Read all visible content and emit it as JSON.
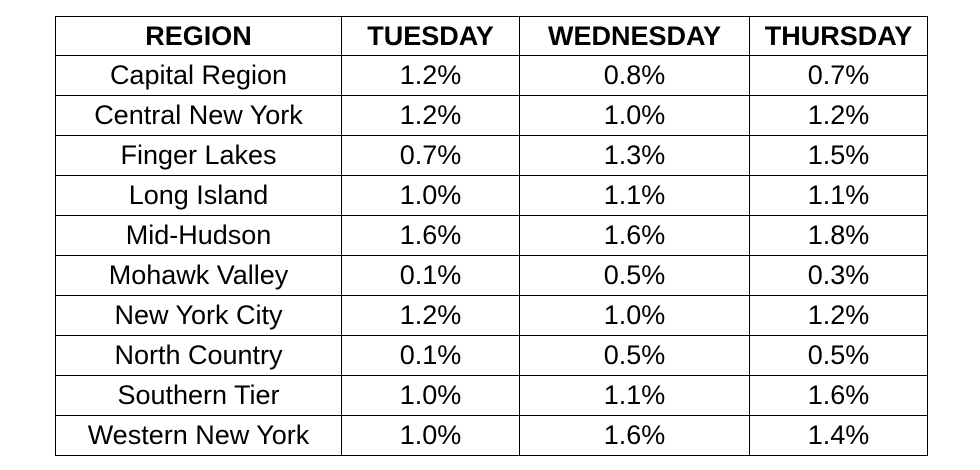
{
  "table": {
    "headers": [
      "REGION",
      "TUESDAY",
      "WEDNESDAY",
      "THURSDAY"
    ],
    "rows": [
      [
        "Capital Region",
        "1.2%",
        "0.8%",
        "0.7%"
      ],
      [
        "Central New York",
        "1.2%",
        "1.0%",
        "1.2%"
      ],
      [
        "Finger Lakes",
        "0.7%",
        "1.3%",
        "1.5%"
      ],
      [
        "Long Island",
        "1.0%",
        "1.1%",
        "1.1%"
      ],
      [
        "Mid-Hudson",
        "1.6%",
        "1.6%",
        "1.8%"
      ],
      [
        "Mohawk Valley",
        "0.1%",
        "0.5%",
        "0.3%"
      ],
      [
        "New York City",
        "1.2%",
        "1.0%",
        "1.2%"
      ],
      [
        "North Country",
        "0.1%",
        "0.5%",
        "0.5%"
      ],
      [
        "Southern Tier",
        "1.0%",
        "1.1%",
        "1.6%"
      ],
      [
        "Western New York",
        "1.0%",
        "1.6%",
        "1.4%"
      ]
    ]
  },
  "colors": {
    "border": "#000000",
    "text": "#000000",
    "background": "#ffffff"
  }
}
